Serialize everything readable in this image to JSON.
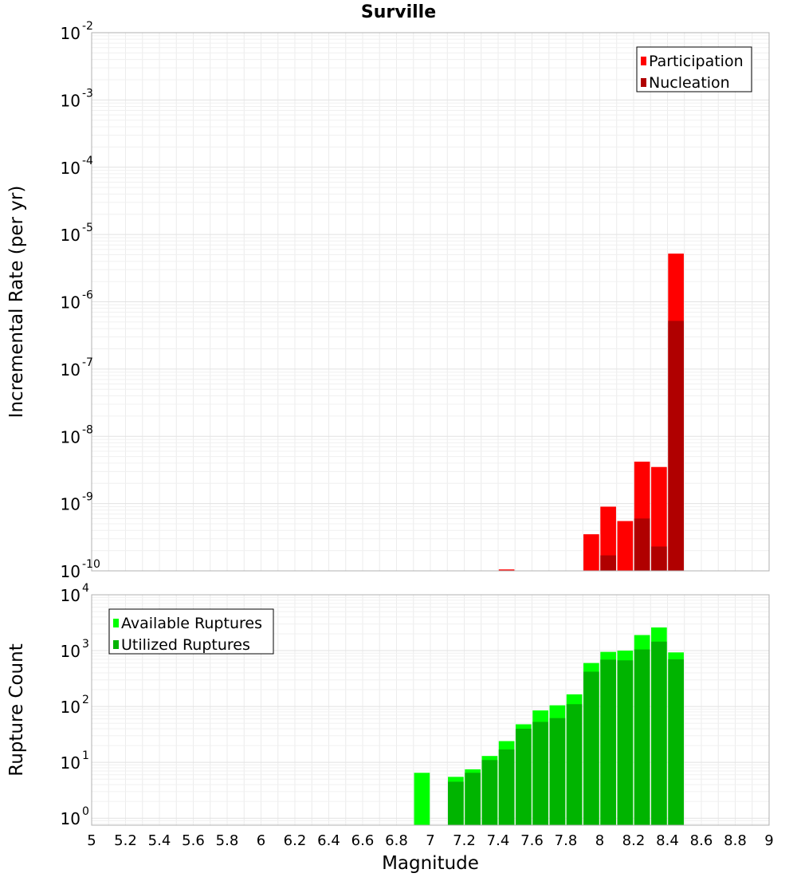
{
  "chart_data": {
    "title": "Surville",
    "xlabel": "Magnitude",
    "xlim": [
      5,
      9
    ],
    "x_ticks": [
      "5",
      "5.2",
      "5.4",
      "5.6",
      "5.8",
      "6",
      "6.2",
      "6.4",
      "6.6",
      "6.8",
      "7",
      "7.2",
      "7.4",
      "7.6",
      "7.8",
      "8",
      "8.2",
      "8.4",
      "8.6",
      "8.8",
      "9"
    ],
    "bin_width": 0.1,
    "panels": [
      {
        "type": "bar",
        "scale": "log",
        "ylabel": "Incremental Rate (per yr)",
        "ylim": [
          1e-10,
          0.01
        ],
        "y_tick_exponents": [
          "-10",
          "-9",
          "-8",
          "-7",
          "-6",
          "-5",
          "-4",
          "-3",
          "-2"
        ],
        "grid": true,
        "legend_position": "top-right",
        "series": [
          {
            "name": "Participation",
            "color": "#ff0000",
            "x": [
              7.45,
              7.95,
              8.05,
              8.15,
              8.25,
              8.35,
              8.45
            ],
            "values": [
              1.05e-10,
              3.5e-10,
              9e-10,
              5.5e-10,
              4.2e-09,
              3.5e-09,
              5.2e-06
            ]
          },
          {
            "name": "Nucleation",
            "color": "#b00000",
            "x": [
              8.05,
              8.25,
              8.35,
              8.45
            ],
            "values": [
              1.7e-10,
              6e-10,
              2.3e-10,
              5.2e-07
            ]
          }
        ]
      },
      {
        "type": "bar",
        "scale": "log",
        "ylabel": "Rupture Count",
        "ylim": [
          0.75,
          10000
        ],
        "y_tick_exponents": [
          "0",
          "1",
          "2",
          "3",
          "4"
        ],
        "grid": true,
        "legend_position": "top-left",
        "series": [
          {
            "name": "Available Ruptures",
            "color": "#00ff00",
            "x": [
              6.95,
              7.15,
              7.25,
              7.35,
              7.45,
              7.55,
              7.65,
              7.75,
              7.85,
              7.95,
              8.05,
              8.15,
              8.25,
              8.35,
              8.45
            ],
            "values": [
              6.5,
              5.5,
              7.5,
              13,
              24,
              48,
              85,
              105,
              165,
              600,
              950,
              1000,
              1900,
              2600,
              930
            ]
          },
          {
            "name": "Utilized Ruptures",
            "color": "#00b400",
            "x": [
              7.15,
              7.25,
              7.35,
              7.45,
              7.55,
              7.65,
              7.75,
              7.85,
              7.95,
              8.05,
              8.15,
              8.25,
              8.35,
              8.45
            ],
            "values": [
              4.5,
              6.5,
              11,
              17,
              40,
              53,
              62,
              110,
              420,
              690,
              670,
              1050,
              1450,
              700
            ]
          }
        ]
      }
    ]
  }
}
